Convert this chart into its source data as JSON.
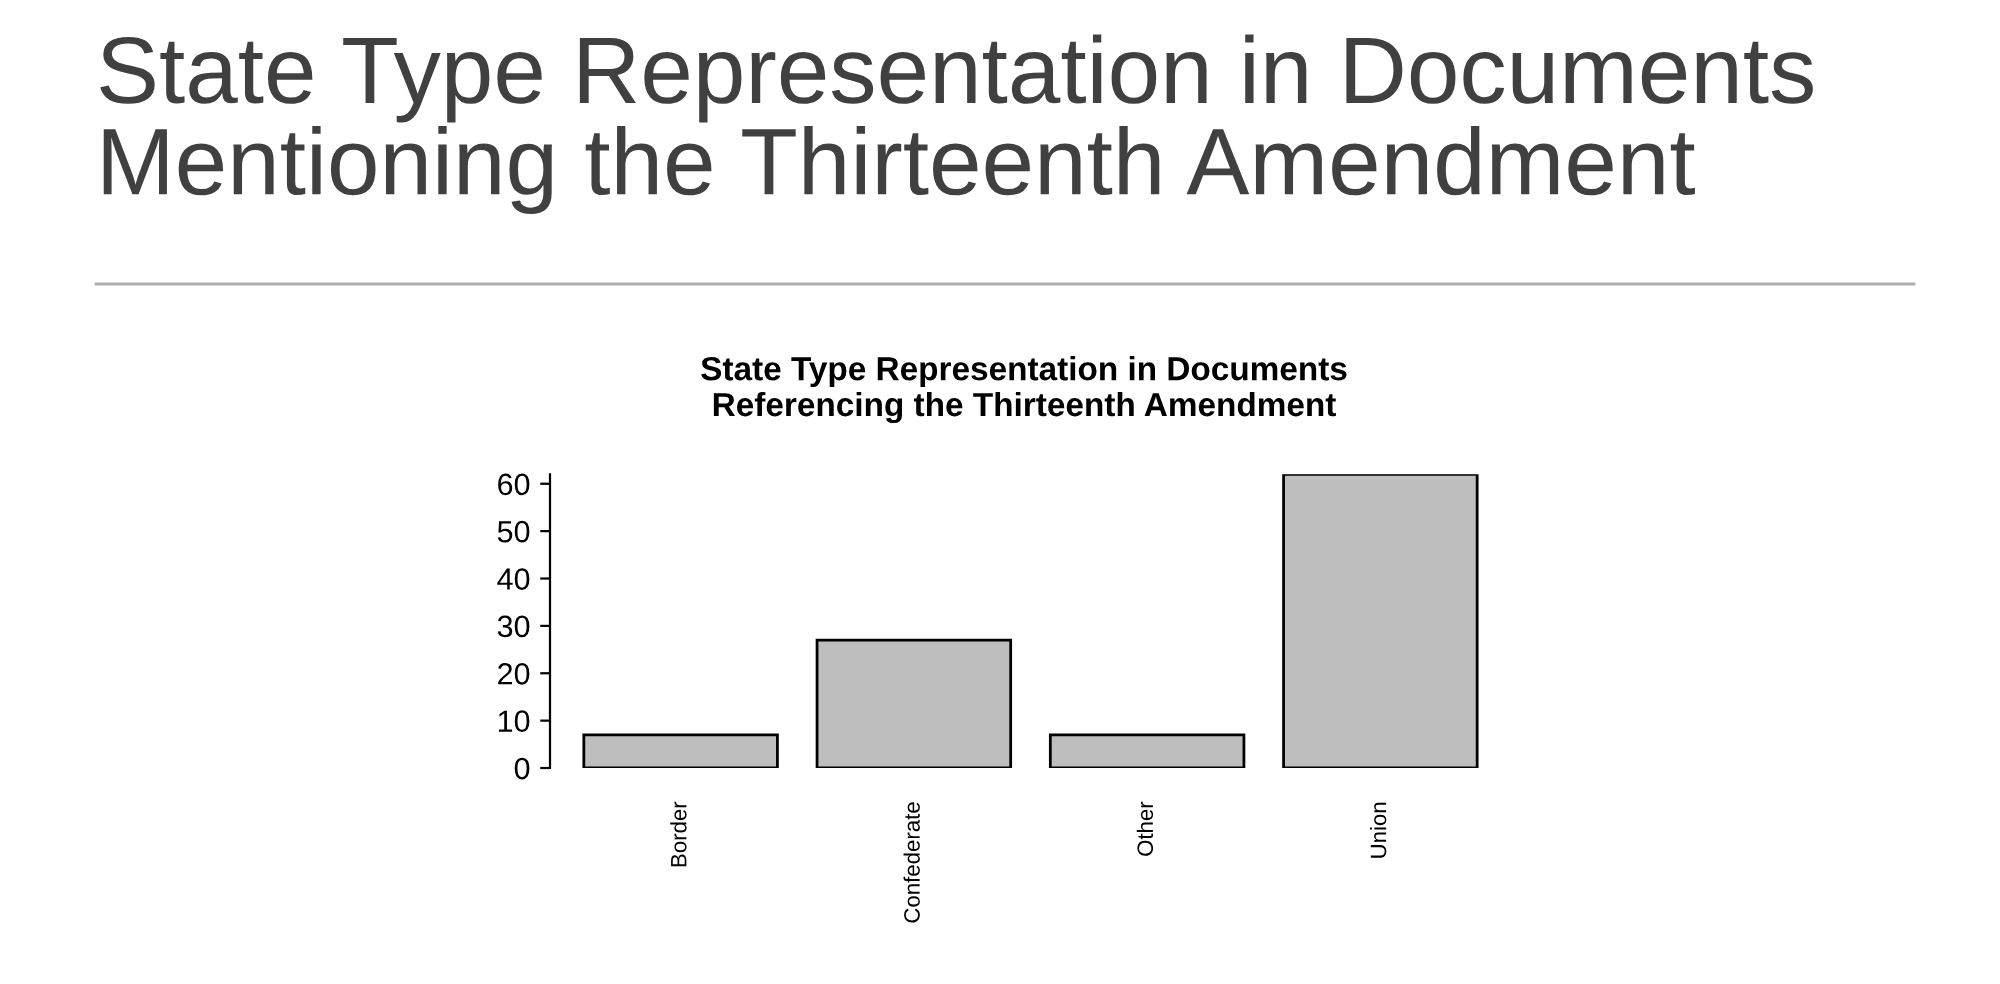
{
  "chart_data": {
    "type": "bar",
    "title": "State Type Representation in Documents\nMentioning the Thirteenth Amendment",
    "subtitle": "State Type Representation in Documents\nReferencing the Thirteenth Amendment",
    "categories": [
      "Border",
      "Confederate",
      "Other",
      "Union"
    ],
    "values": [
      7,
      27,
      7,
      62
    ],
    "color": "#bebebe",
    "ylim": [
      0,
      62
    ],
    "yticks": [
      0,
      10,
      20,
      30,
      40,
      50,
      60
    ],
    "grid": false
  }
}
